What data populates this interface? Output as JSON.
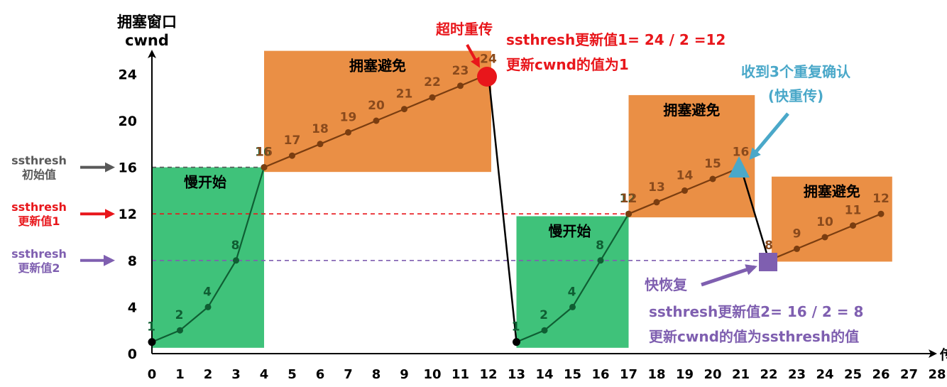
{
  "y_axis": {
    "label_line1": "拥塞窗口",
    "label_line2": "cwnd",
    "ticks": [
      0,
      4,
      8,
      12,
      16,
      20,
      24
    ]
  },
  "x_axis": {
    "ticks": [
      0,
      1,
      2,
      3,
      4,
      5,
      6,
      7,
      8,
      9,
      10,
      11,
      12,
      13,
      14,
      15,
      16,
      17,
      18,
      19,
      20,
      21,
      22,
      23,
      24,
      25,
      26,
      27,
      28
    ],
    "end_label": "传"
  },
  "thresholds": [
    {
      "line1": "ssthresh",
      "line2": "初始值",
      "value": 16,
      "color": "#595959"
    },
    {
      "line1": "ssthresh",
      "line2": "更新值1",
      "value": 12,
      "color": "#e8161b"
    },
    {
      "line1": "ssthresh",
      "line2": "更新值2",
      "value": 8,
      "color": "#7f5fb0"
    }
  ],
  "regions": [
    {
      "label": "慢开始",
      "x0": 0,
      "x1": 4,
      "y0": 0.5,
      "y1": 16,
      "color": "#3fc27a"
    },
    {
      "label": "拥塞避免",
      "x0": 4,
      "x1": 12.1,
      "y0": 15.6,
      "y1": 26,
      "color": "#ea8f45"
    },
    {
      "label": "慢开始",
      "x0": 13,
      "x1": 17,
      "y0": 0.5,
      "y1": 11.8,
      "color": "#3fc27a"
    },
    {
      "label": "拥塞避免",
      "x0": 17,
      "x1": 21.5,
      "y0": 11.7,
      "y1": 22.2,
      "color": "#ea8f45"
    },
    {
      "label": "拥塞避免",
      "x0": 22.1,
      "x1": 26.4,
      "y0": 7.9,
      "y1": 15.2,
      "color": "#ea8f45"
    }
  ],
  "chart_data": {
    "type": "line",
    "xlabel": "传",
    "ylabel": "拥塞窗口 cwnd",
    "xlim": [
      0,
      28
    ],
    "ylim": [
      0,
      24
    ],
    "segments": [
      {
        "name": "slow-start-1",
        "x": [
          0,
          1,
          2,
          3,
          4
        ],
        "y": [
          1,
          2,
          4,
          8,
          16
        ],
        "labels": [
          "1",
          "2",
          "4",
          "8",
          "16"
        ]
      },
      {
        "name": "congestion-avoidance-1",
        "x": [
          4,
          5,
          6,
          7,
          8,
          9,
          10,
          11,
          12
        ],
        "y": [
          16,
          17,
          18,
          19,
          20,
          21,
          22,
          23,
          24
        ],
        "labels": [
          "16",
          "17",
          "18",
          "19",
          "20",
          "21",
          "22",
          "23",
          "24"
        ]
      },
      {
        "name": "slow-start-2",
        "x": [
          13,
          14,
          15,
          16,
          17
        ],
        "y": [
          1,
          2,
          4,
          8,
          12
        ],
        "labels": [
          "1",
          "2",
          "4",
          "8",
          "12"
        ]
      },
      {
        "name": "congestion-avoidance-2",
        "x": [
          17,
          18,
          19,
          20,
          21
        ],
        "y": [
          12,
          13,
          14,
          15,
          16
        ],
        "labels": [
          "12",
          "13",
          "14",
          "15",
          "16"
        ]
      },
      {
        "name": "congestion-avoidance-3",
        "x": [
          22,
          23,
          24,
          25,
          26
        ],
        "y": [
          8,
          9,
          10,
          11,
          12
        ],
        "labels": [
          "8",
          "9",
          "10",
          "11",
          "12"
        ]
      }
    ],
    "drops": [
      {
        "from": [
          12,
          24
        ],
        "to": [
          13,
          1
        ]
      },
      {
        "from": [
          21,
          16
        ],
        "to": [
          22,
          8
        ]
      }
    ]
  },
  "events": {
    "timeout": {
      "title": "超时重传",
      "line1": "ssthresh更新值1= 24 / 2 =12",
      "line2": "更新cwnd的值为1",
      "color": "#e8161b"
    },
    "triple_ack": {
      "line1": "收到3个重复确认",
      "line2": "(快重传)",
      "color": "#4aa8c9"
    },
    "fast_recovery": {
      "title": "快恢复",
      "line1": "ssthresh更新值2= 16 / 2 = 8",
      "line2": "更新cwnd的值为ssthresh的值",
      "color": "#7f5fb0"
    }
  }
}
